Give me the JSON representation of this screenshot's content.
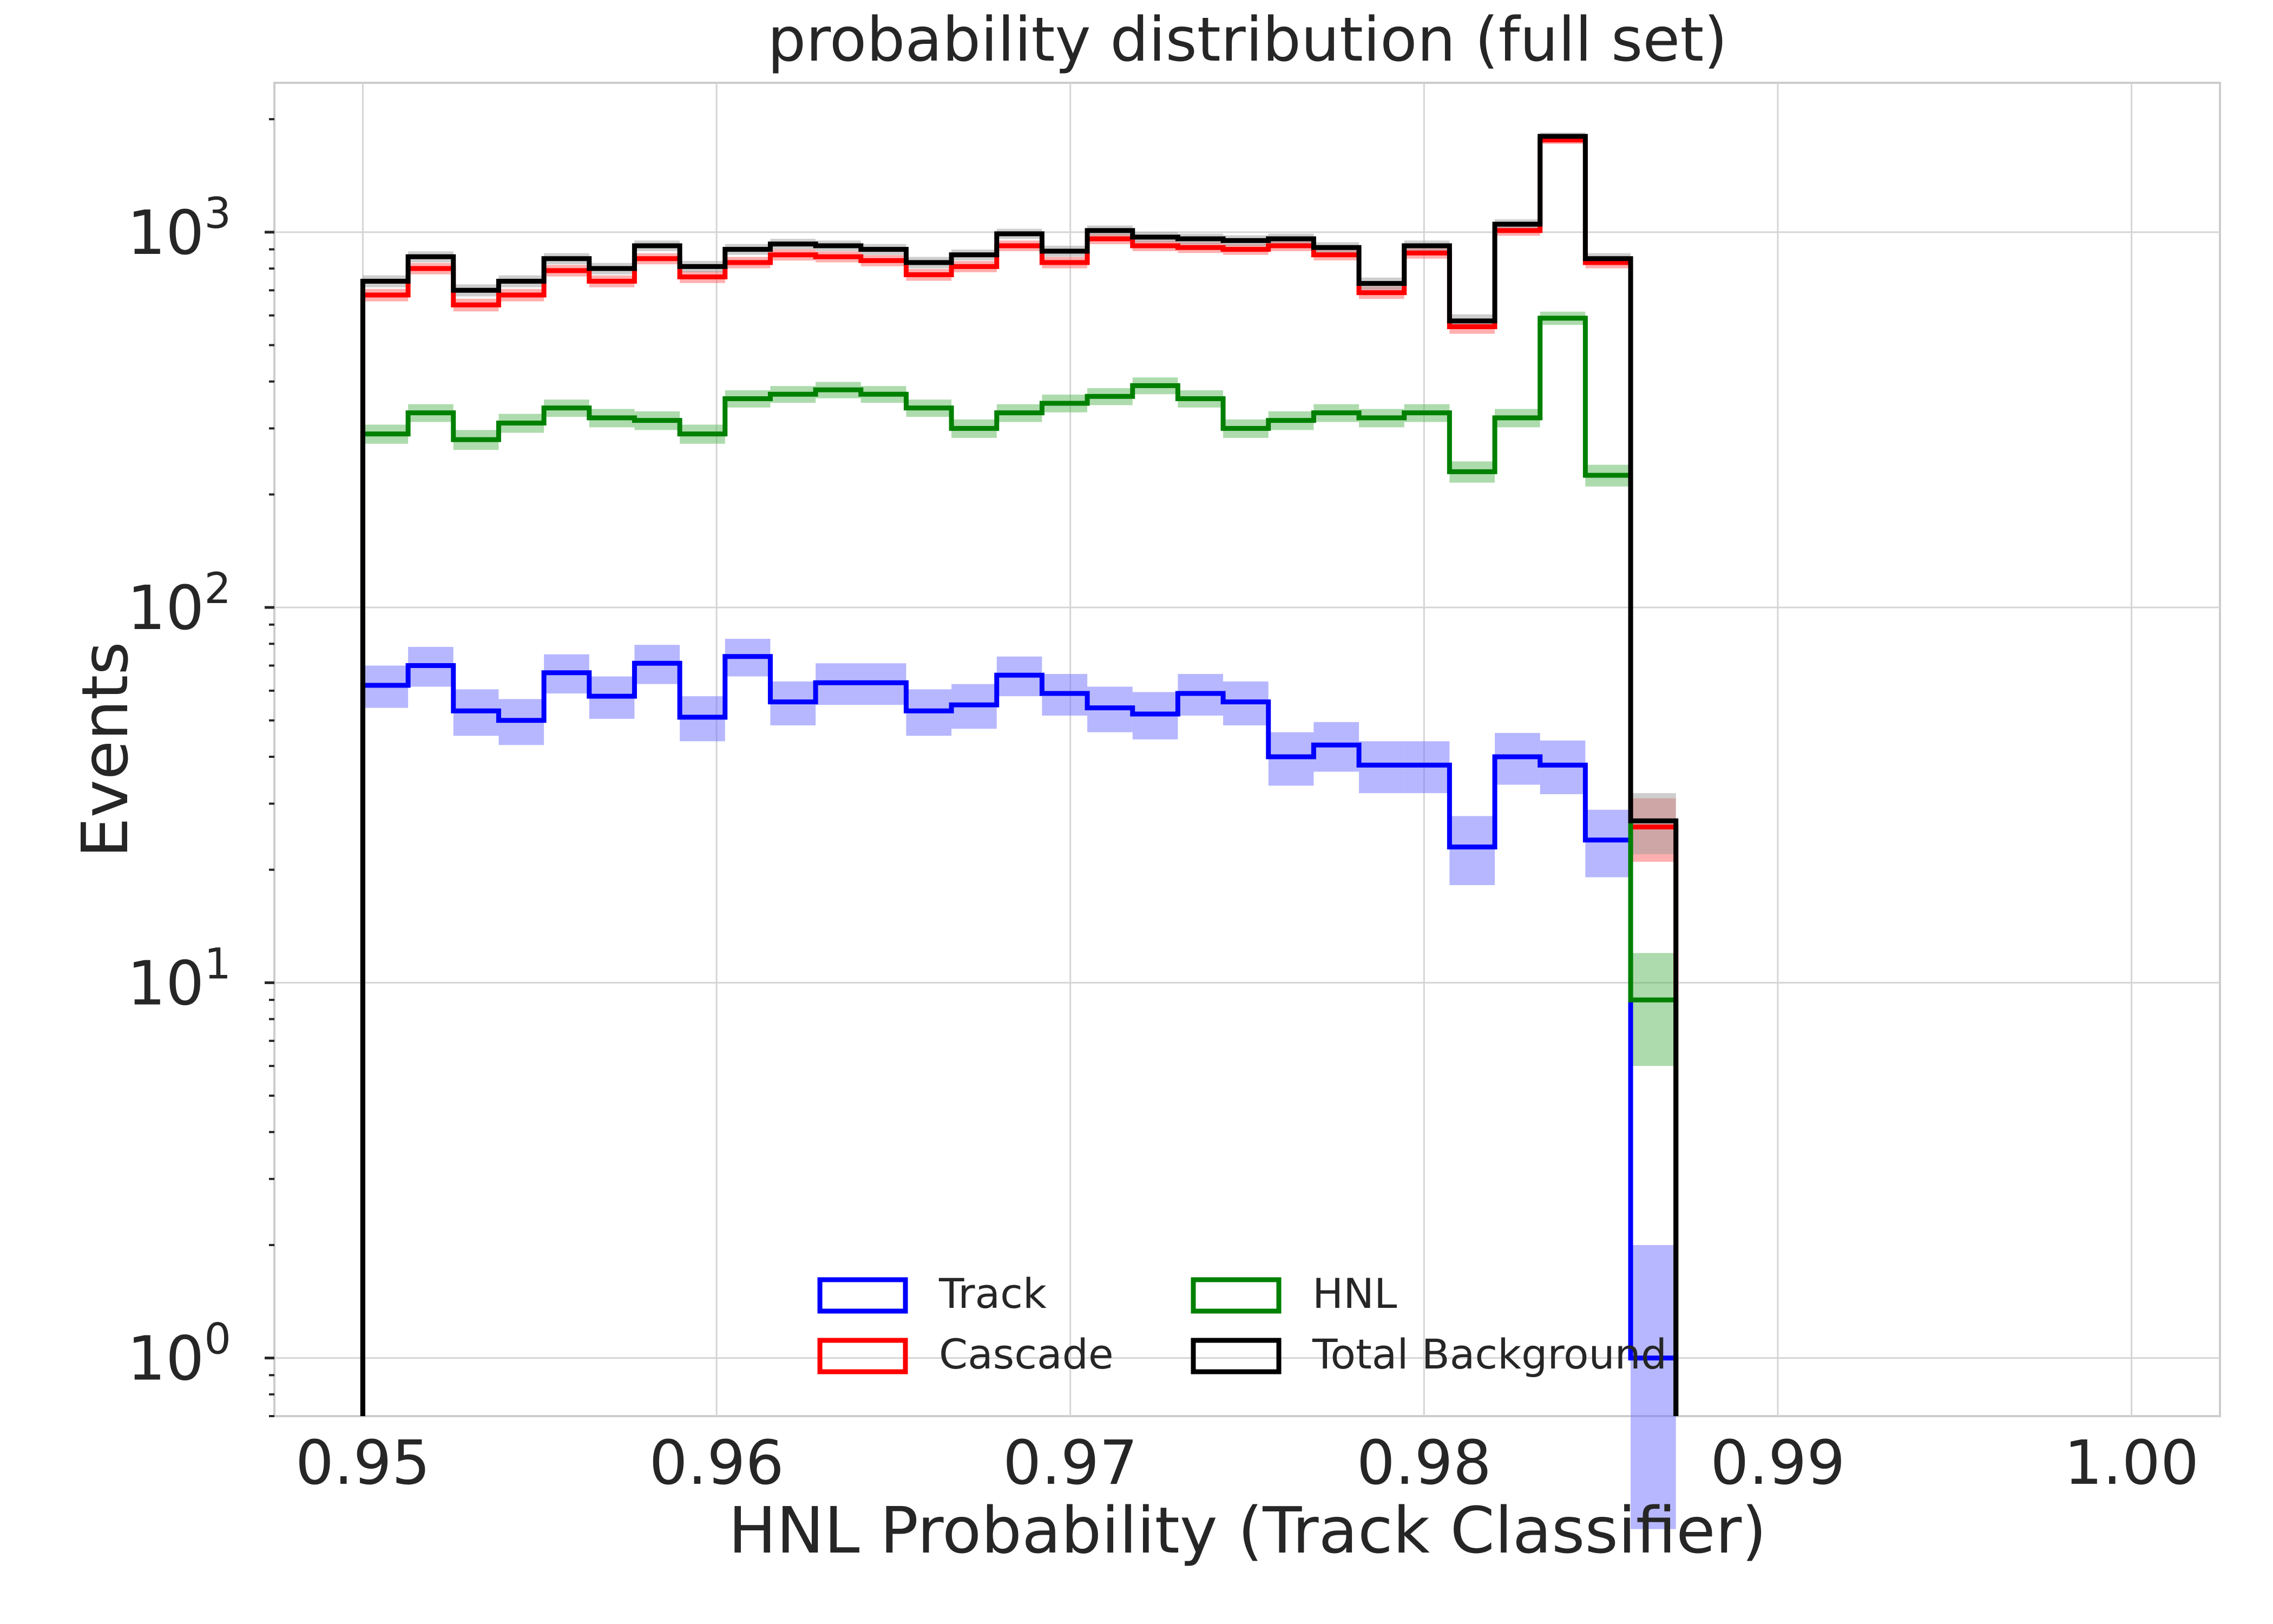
{
  "chart_data": {
    "type": "histogram",
    "title": "probability distribution (full set)",
    "xlabel": "HNL Probability (Track Classifier)",
    "ylabel": "Events",
    "yscale": "log",
    "xlim": [
      0.9475,
      1.0025
    ],
    "ylim": [
      0.7,
      2500
    ],
    "grid": true,
    "xticks": [
      0.95,
      0.96,
      0.97,
      0.98,
      0.99,
      1.0
    ],
    "xtick_labels": [
      "0.95",
      "0.96",
      "0.97",
      "0.98",
      "0.99",
      "1.00"
    ],
    "yticks": [
      1,
      10,
      100,
      1000
    ],
    "ytick_labels": [
      {
        "base": "10",
        "exp": "0"
      },
      {
        "base": "10",
        "exp": "1"
      },
      {
        "base": "10",
        "exp": "2"
      },
      {
        "base": "10",
        "exp": "3"
      }
    ],
    "bin_start": 0.95,
    "bin_width": 0.00128,
    "legend": {
      "placement": "lower-center",
      "columns": 2,
      "entries": [
        "Track",
        "Cascade",
        "HNL",
        "Total Background"
      ]
    },
    "series": [
      {
        "name": "Track",
        "color": "#0000ff",
        "band_color": "#7070ff",
        "values": [
          62,
          70,
          53,
          50,
          67,
          58,
          71,
          51,
          74,
          56,
          63,
          63,
          53,
          55,
          66,
          59,
          54,
          52,
          59,
          56,
          40,
          43,
          38,
          38,
          23,
          40,
          38,
          24,
          1
        ],
        "errors": [
          8,
          8.5,
          7.5,
          7,
          8,
          7.5,
          8.5,
          7,
          8.5,
          7.5,
          8,
          8,
          7.5,
          7.5,
          8,
          7.5,
          7.5,
          7.5,
          7.5,
          7.5,
          6.5,
          6.5,
          6,
          6,
          4.8,
          6.3,
          6.2,
          4.9,
          1.0
        ]
      },
      {
        "name": "Cascade",
        "color": "#ff0000",
        "band_color": "#ff6060",
        "values": [
          680,
          800,
          640,
          680,
          790,
          740,
          850,
          760,
          830,
          870,
          860,
          840,
          770,
          810,
          920,
          830,
          960,
          920,
          910,
          900,
          920,
          870,
          690,
          880,
          560,
          1010,
          1760,
          830,
          26
        ],
        "errors": [
          26,
          28,
          25,
          26,
          28,
          27,
          29,
          28,
          29,
          30,
          29,
          29,
          28,
          28,
          30,
          29,
          31,
          30,
          30,
          30,
          30,
          29,
          26,
          30,
          24,
          32,
          42,
          29,
          5
        ]
      },
      {
        "name": "HNL",
        "color": "#008000",
        "band_color": "#5cb85c",
        "values": [
          290,
          330,
          280,
          310,
          340,
          320,
          315,
          290,
          360,
          370,
          380,
          370,
          340,
          300,
          330,
          350,
          365,
          390,
          360,
          300,
          315,
          330,
          320,
          330,
          230,
          320,
          590,
          225,
          9
        ],
        "errors": [
          17,
          18,
          17,
          18,
          18,
          18,
          18,
          17,
          19,
          19,
          19,
          19,
          18,
          17,
          18,
          19,
          19,
          20,
          19,
          17,
          18,
          18,
          18,
          18,
          15,
          18,
          24,
          15,
          3
        ]
      },
      {
        "name": "Total Background",
        "color": "#000000",
        "band_color": "#9e9e9e",
        "values": [
          740,
          860,
          700,
          740,
          850,
          800,
          920,
          810,
          900,
          930,
          920,
          900,
          830,
          870,
          990,
          890,
          1010,
          970,
          960,
          950,
          960,
          910,
          730,
          920,
          580,
          1050,
          1800,
          850,
          27
        ],
        "errors": [
          27,
          29,
          26,
          27,
          29,
          28,
          30,
          28,
          30,
          30,
          30,
          30,
          29,
          29,
          31,
          30,
          32,
          31,
          31,
          31,
          31,
          30,
          27,
          30,
          24,
          32,
          42,
          29,
          5
        ]
      }
    ]
  }
}
